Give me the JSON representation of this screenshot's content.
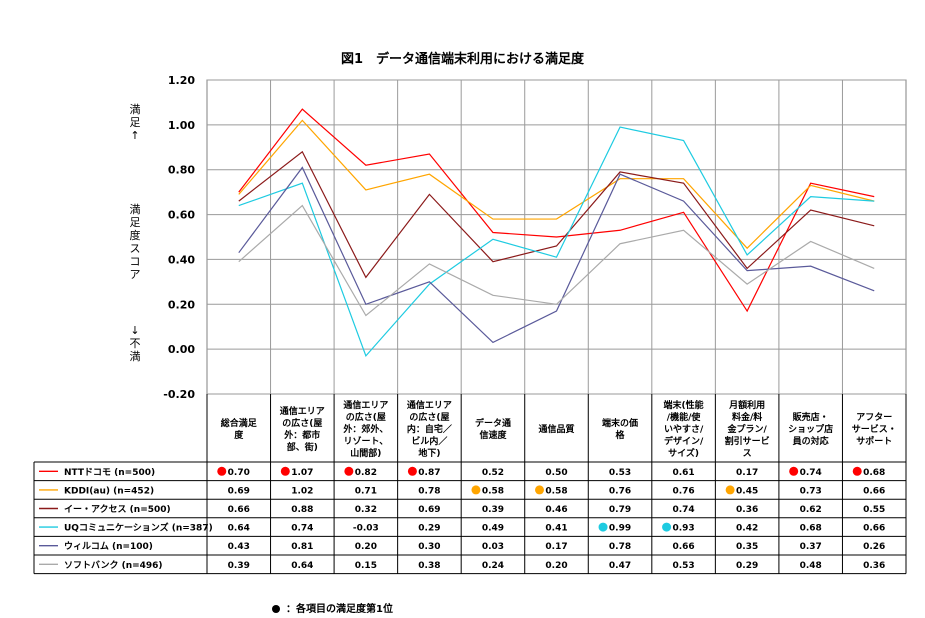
{
  "title": "図1　データ通信端末利用における満足度",
  "footnote": "：各項目の満足度第1位",
  "chart_data": {
    "type": "line",
    "ylim": [
      -0.2,
      1.2
    ],
    "yticks": [
      "1.20",
      "1.00",
      "0.80",
      "0.60",
      "0.40",
      "0.20",
      "0.00",
      "-0.20"
    ],
    "grid": true,
    "ylabel": {
      "top": "満足↑",
      "middle": "満足度スコア",
      "bottom": "↓不満"
    },
    "categories": [
      [
        "総合満足",
        "度"
      ],
      [
        "通信エリア",
        "の広さ(屋",
        "外：都市",
        "部、街)"
      ],
      [
        "通信エリア",
        "の広さ(屋",
        "外：郊外、",
        "リゾート、",
        "山間部)"
      ],
      [
        "通信エリア",
        "の広さ(屋",
        "内：自宅／",
        "ビル内／",
        "地下)"
      ],
      [
        "データ通",
        "信速度"
      ],
      [
        "通信品質"
      ],
      [
        "端末の価",
        "格"
      ],
      [
        "端末(性能",
        "/機能/使",
        "いやすさ/",
        "デザイン/",
        "サイズ)"
      ],
      [
        "月額利用",
        "料金/料",
        "金プラン/",
        "割引サービ",
        "ス"
      ],
      [
        "販売店・",
        "ショップ店",
        "員の対応"
      ],
      [
        "アフター",
        "サービス・",
        "サポート"
      ]
    ],
    "series": [
      {
        "name": "NTTドコモ (n=500)",
        "color": "#ff0000",
        "values": [
          0.7,
          1.07,
          0.82,
          0.87,
          0.52,
          0.5,
          0.53,
          0.61,
          0.17,
          0.74,
          0.68
        ],
        "labels": [
          "0.70",
          "1.07",
          "0.82",
          "0.87",
          "0.52",
          "0.50",
          "0.53",
          "0.61",
          "0.17",
          "0.74",
          "0.68"
        ],
        "first": [
          true,
          true,
          true,
          true,
          false,
          false,
          false,
          false,
          false,
          true,
          true
        ]
      },
      {
        "name": "KDDI(au) (n=452)",
        "color": "#ffa500",
        "values": [
          0.69,
          1.02,
          0.71,
          0.78,
          0.58,
          0.58,
          0.76,
          0.76,
          0.45,
          0.73,
          0.66
        ],
        "labels": [
          "0.69",
          "1.02",
          "0.71",
          "0.78",
          "0.58",
          "0.58",
          "0.76",
          "0.76",
          "0.45",
          "0.73",
          "0.66"
        ],
        "first": [
          false,
          false,
          false,
          false,
          true,
          true,
          false,
          false,
          true,
          false,
          false
        ]
      },
      {
        "name": "イー・アクセス (n=500)",
        "color": "#8b1a1a",
        "values": [
          0.66,
          0.88,
          0.32,
          0.69,
          0.39,
          0.46,
          0.79,
          0.74,
          0.36,
          0.62,
          0.55
        ],
        "labels": [
          "0.66",
          "0.88",
          "0.32",
          "0.69",
          "0.39",
          "0.46",
          "0.79",
          "0.74",
          "0.36",
          "0.62",
          "0.55"
        ],
        "first": [
          false,
          false,
          false,
          false,
          false,
          false,
          false,
          false,
          false,
          false,
          false
        ]
      },
      {
        "name": "UQコミュニケーションズ (n=387)",
        "color": "#1ecbe1",
        "values": [
          0.64,
          0.74,
          -0.03,
          0.29,
          0.49,
          0.41,
          0.99,
          0.93,
          0.42,
          0.68,
          0.66
        ],
        "labels": [
          "0.64",
          "0.74",
          "-0.03",
          "0.29",
          "0.49",
          "0.41",
          "0.99",
          "0.93",
          "0.42",
          "0.68",
          "0.66"
        ],
        "first": [
          false,
          false,
          false,
          false,
          false,
          false,
          true,
          true,
          false,
          false,
          false
        ]
      },
      {
        "name": "ウィルコム (n=100)",
        "color": "#5a5a9a",
        "values": [
          0.43,
          0.81,
          0.2,
          0.3,
          0.03,
          0.17,
          0.78,
          0.66,
          0.35,
          0.37,
          0.26
        ],
        "labels": [
          "0.43",
          "0.81",
          "0.20",
          "0.30",
          "0.03",
          "0.17",
          "0.78",
          "0.66",
          "0.35",
          "0.37",
          "0.26"
        ],
        "first": [
          false,
          false,
          false,
          false,
          false,
          false,
          false,
          false,
          false,
          false,
          false
        ]
      },
      {
        "name": "ソフトバンク (n=496)",
        "color": "#aaaaaa",
        "values": [
          0.39,
          0.64,
          0.15,
          0.38,
          0.24,
          0.2,
          0.47,
          0.53,
          0.29,
          0.48,
          0.36
        ],
        "labels": [
          "0.39",
          "0.64",
          "0.15",
          "0.38",
          "0.24",
          "0.20",
          "0.47",
          "0.53",
          "0.29",
          "0.48",
          "0.36"
        ],
        "first": [
          false,
          false,
          false,
          false,
          false,
          false,
          false,
          false,
          false,
          false,
          false
        ]
      }
    ]
  }
}
